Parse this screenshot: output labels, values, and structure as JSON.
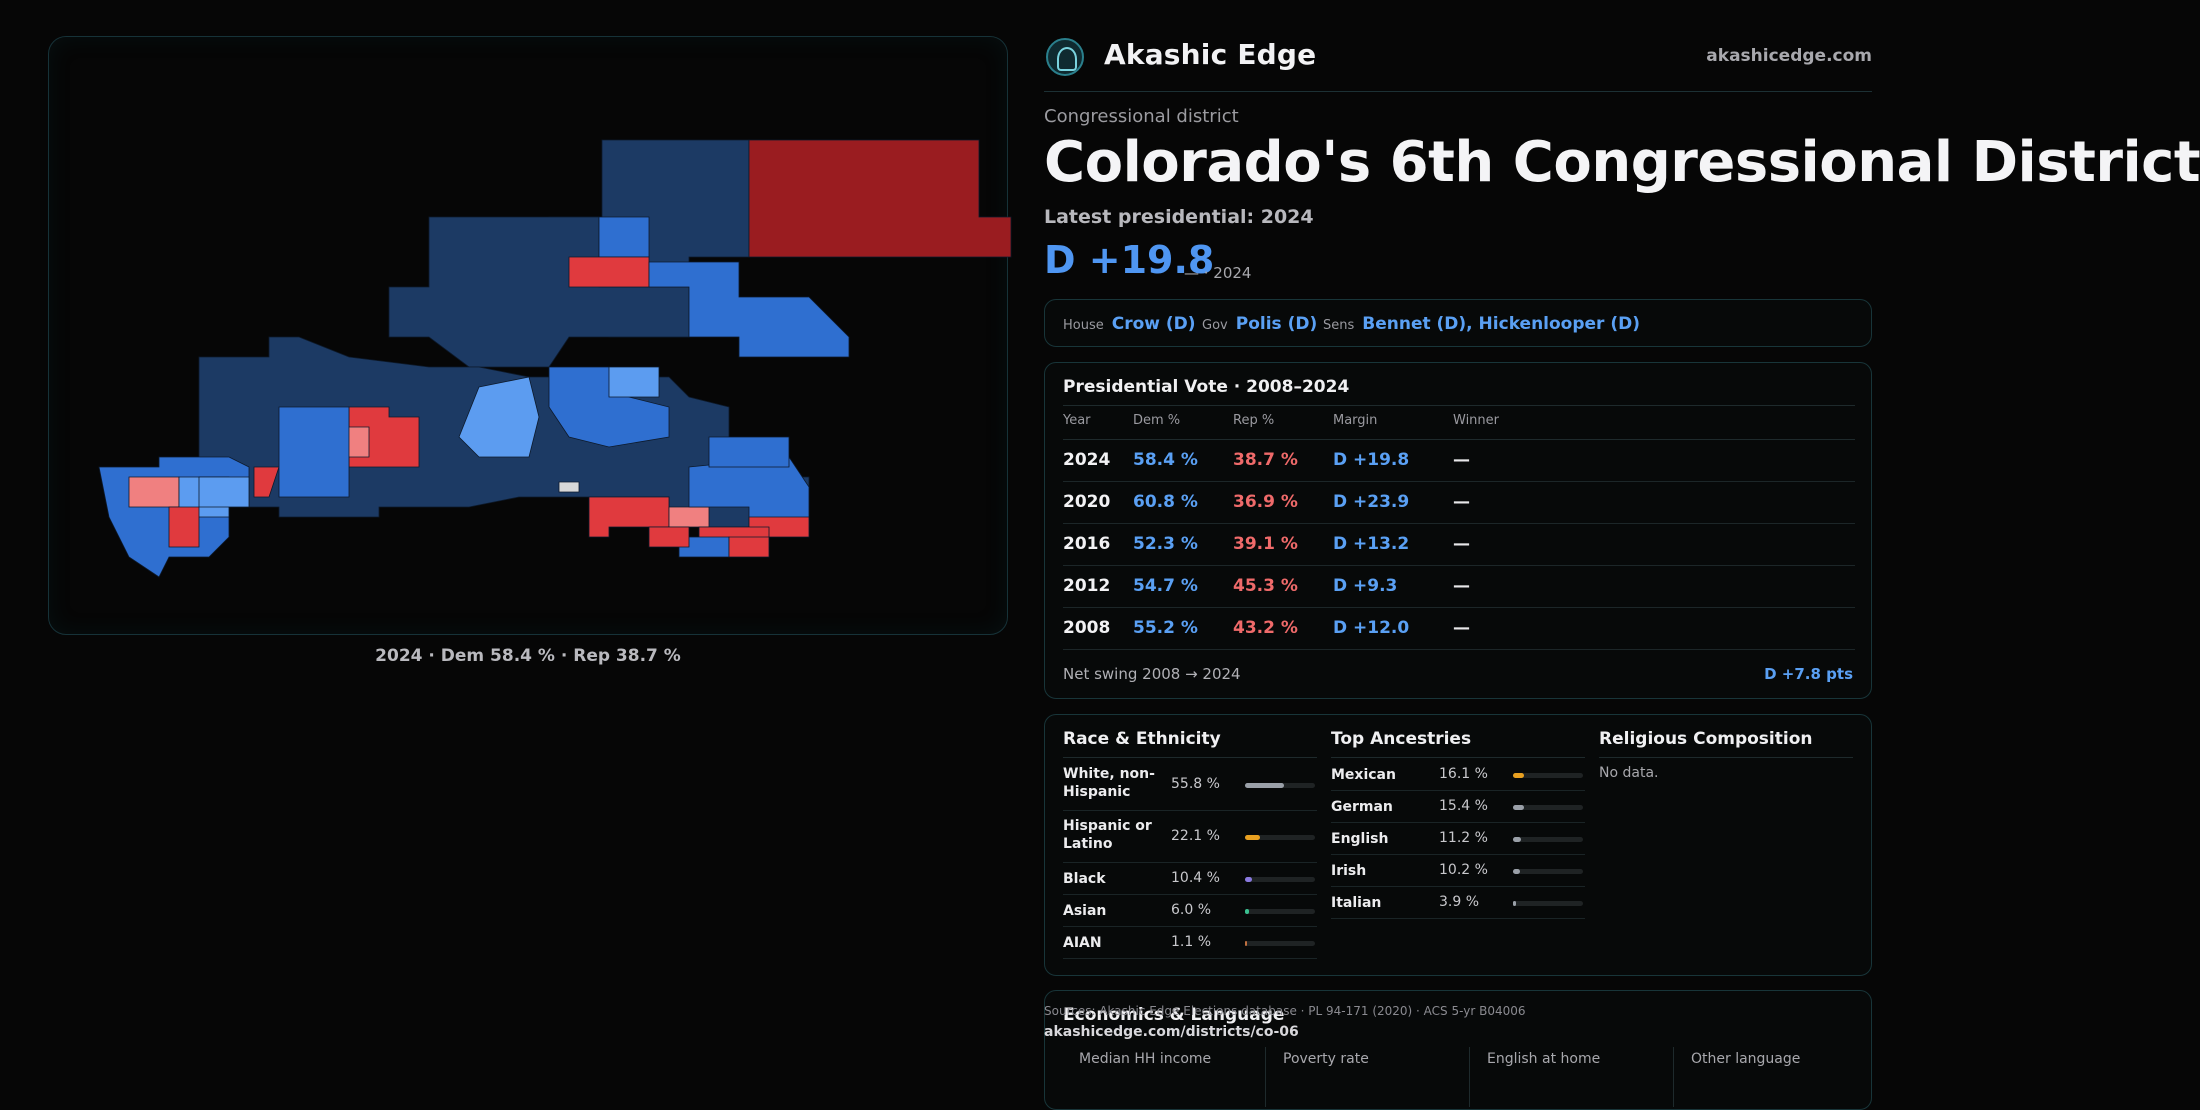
{
  "map": {
    "caption": "2024 · Dem 58.4 % · Rep 38.7 %",
    "colors": {
      "dem_dark": "#1c3a64",
      "dem_mid": "#2f6fd0",
      "dem_light": "#5c9cf0",
      "rep_dark": "#9a1c20",
      "rep_mid": "#e03a3e",
      "rep_light": "#f08080",
      "neutral": "#d8d8d8"
    }
  },
  "brand": {
    "name": "Akashic Edge",
    "site": "akashicedge.com",
    "logo_icon": "tree-icon"
  },
  "district": {
    "kicker": "Congressional district",
    "title": "Colorado's 6th Congressional District",
    "latest_label": "Latest presidential: 2024",
    "margin": "D +19.8",
    "margin_sub": "— · 2024"
  },
  "officials": {
    "house_label": "House",
    "house": "Crow (D)",
    "gov_label": "Gov",
    "gov": "Polis (D)",
    "sens_label": "Sens",
    "sens": "Bennet (D), Hickenlooper (D)"
  },
  "presidential": {
    "title": "Presidential Vote · 2008–2024",
    "headers": {
      "year": "Year",
      "dem": "Dem %",
      "rep": "Rep %",
      "margin": "Margin",
      "winner": "Winner"
    },
    "rows": [
      {
        "year": "2024",
        "dem": "58.4 %",
        "rep": "38.7 %",
        "margin": "D +19.8",
        "winner": "—"
      },
      {
        "year": "2020",
        "dem": "60.8 %",
        "rep": "36.9 %",
        "margin": "D +23.9",
        "winner": "—"
      },
      {
        "year": "2016",
        "dem": "52.3 %",
        "rep": "39.1 %",
        "margin": "D +13.2",
        "winner": "—"
      },
      {
        "year": "2012",
        "dem": "54.7 %",
        "rep": "45.3 %",
        "margin": "D +9.3",
        "winner": "—"
      },
      {
        "year": "2008",
        "dem": "55.2 %",
        "rep": "43.2 %",
        "margin": "D +12.0",
        "winner": "—"
      }
    ],
    "swing_label": "Net swing 2008 → 2024",
    "swing_value": "D +7.8 pts"
  },
  "race": {
    "title": "Race & Ethnicity",
    "items": [
      {
        "label": "White, non-Hispanic",
        "value": "55.8 %",
        "share": 55.8,
        "color": "#9aa0a8"
      },
      {
        "label": "Hispanic or Latino",
        "value": "22.1 %",
        "share": 22.1,
        "color": "#e8a020"
      },
      {
        "label": "Black",
        "value": "10.4 %",
        "share": 10.4,
        "color": "#8a7ae0"
      },
      {
        "label": "Asian",
        "value": "6.0 %",
        "share": 6.0,
        "color": "#3ac090"
      },
      {
        "label": "AIAN",
        "value": "1.1 %",
        "share": 1.1,
        "color": "#c07040"
      }
    ]
  },
  "ancestry": {
    "title": "Top Ancestries",
    "items": [
      {
        "label": "Mexican",
        "value": "16.1 %",
        "share": 16.1,
        "color": "#e8a020"
      },
      {
        "label": "German",
        "value": "15.4 %",
        "share": 15.4,
        "color": "#9aa0a8"
      },
      {
        "label": "English",
        "value": "11.2 %",
        "share": 11.2,
        "color": "#9aa0a8"
      },
      {
        "label": "Irish",
        "value": "10.2 %",
        "share": 10.2,
        "color": "#9aa0a8"
      },
      {
        "label": "Italian",
        "value": "3.9 %",
        "share": 3.9,
        "color": "#9aa0a8"
      }
    ]
  },
  "religion": {
    "title": "Religious Composition",
    "empty": "No data."
  },
  "economics": {
    "title": "Economics & Language",
    "items": [
      {
        "label": "Median HH income",
        "value": ""
      },
      {
        "label": "Poverty rate",
        "value": ""
      },
      {
        "label": "English at home",
        "value": ""
      },
      {
        "label": "Other language",
        "value": ""
      }
    ]
  },
  "footer": {
    "source": "Sources: Akashic Edge Elections database · PL 94-171 (2020) · ACS 5-yr B04006",
    "permalink": "akashicedge.com/districts/co-06"
  }
}
